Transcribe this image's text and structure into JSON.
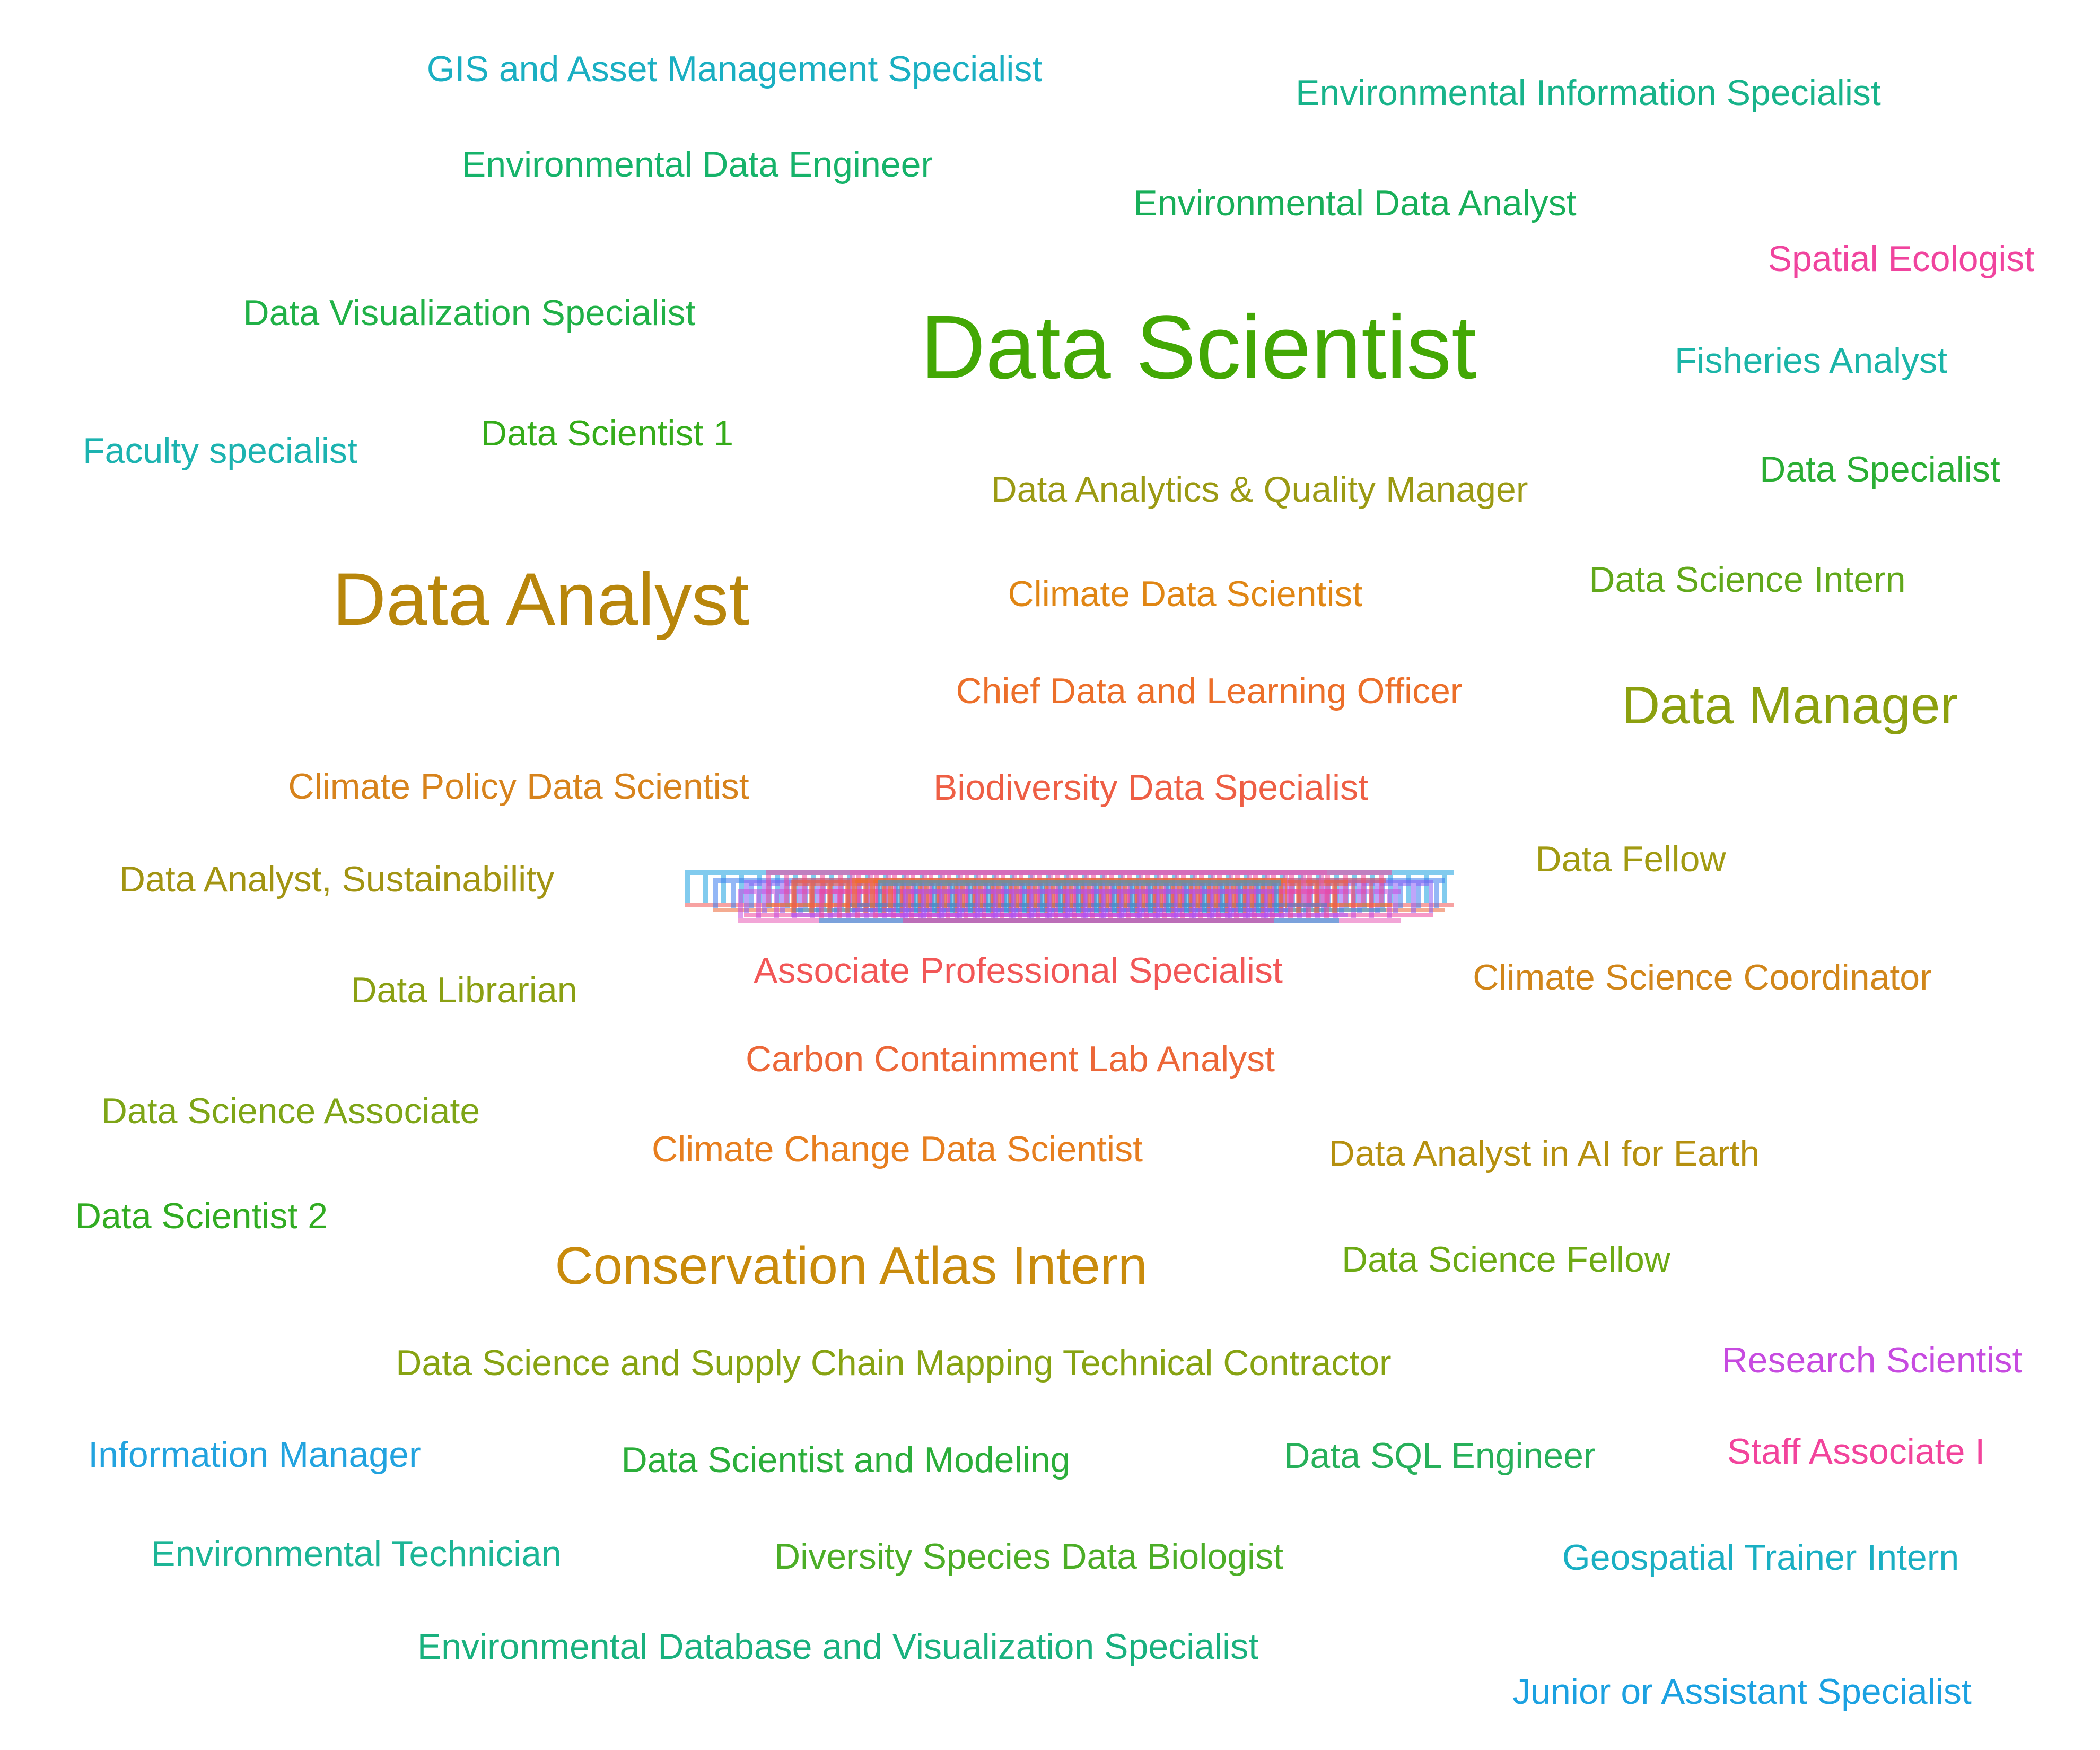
{
  "chart_data": {
    "type": "wordcloud",
    "words": [
      {
        "text": "Data Scientist",
        "weight": 5,
        "color": "#43A805"
      },
      {
        "text": "Data Analyst",
        "weight": 4,
        "color": "#B8860B"
      },
      {
        "text": "Data Manager",
        "weight": 3,
        "color": "#8CA00F"
      },
      {
        "text": "Conservation Atlas Intern",
        "weight": 3,
        "color": "#C98B0C"
      },
      {
        "text": "GIS and Asset Management Specialist",
        "weight": 1,
        "color": "#1AAFC2"
      },
      {
        "text": "Environmental Information Specialist",
        "weight": 1,
        "color": "#17B38A"
      },
      {
        "text": "Environmental Data Engineer",
        "weight": 1,
        "color": "#16B36A"
      },
      {
        "text": "Environmental Data Analyst",
        "weight": 1,
        "color": "#18AF59"
      },
      {
        "text": "Spatial Ecologist",
        "weight": 1,
        "color": "#F0449E"
      },
      {
        "text": "Data Visualization Specialist",
        "weight": 1,
        "color": "#20B147"
      },
      {
        "text": "Fisheries Analyst",
        "weight": 1,
        "color": "#1BB5A8"
      },
      {
        "text": "Faculty specialist",
        "weight": 1,
        "color": "#1CB3B0"
      },
      {
        "text": "Data Scientist 1",
        "weight": 1,
        "color": "#35AC1A"
      },
      {
        "text": "Data Specialist",
        "weight": 1,
        "color": "#2AAE34"
      },
      {
        "text": "Data Analytics & Quality Manager",
        "weight": 1,
        "color": "#9B9A13"
      },
      {
        "text": "Climate Data Scientist",
        "weight": 1,
        "color": "#E08614"
      },
      {
        "text": "Data Science Intern",
        "weight": 1,
        "color": "#61A81A"
      },
      {
        "text": "Chief Data and Learning Officer",
        "weight": 1,
        "color": "#EC6F2A"
      },
      {
        "text": "Climate Policy Data Scientist",
        "weight": 1,
        "color": "#D7831C"
      },
      {
        "text": "Biodiversity Data Specialist",
        "weight": 1,
        "color": "#EE5F45"
      },
      {
        "text": "Data Fellow",
        "weight": 1,
        "color": "#A19A11"
      },
      {
        "text": "Data Analyst, Sustainability",
        "weight": 1,
        "color": "#A29412"
      },
      {
        "text": "Associate Professional Specialist",
        "weight": 1,
        "color": "#F25757"
      },
      {
        "text": "Climate Science Coordinator",
        "weight": 1,
        "color": "#D1861A"
      },
      {
        "text": "Data Librarian",
        "weight": 1,
        "color": "#8BA013"
      },
      {
        "text": "Carbon Containment Lab Analyst",
        "weight": 1,
        "color": "#EC6738"
      },
      {
        "text": "Data Science Associate",
        "weight": 1,
        "color": "#7EA517"
      },
      {
        "text": "Climate Change Data Scientist",
        "weight": 1,
        "color": "#E77E1E"
      },
      {
        "text": "Data Analyst in AI for Earth",
        "weight": 1,
        "color": "#B5900F"
      },
      {
        "text": "Data Scientist 2",
        "weight": 1,
        "color": "#31AC22"
      },
      {
        "text": "Data Science Fellow",
        "weight": 1,
        "color": "#6DAA14"
      },
      {
        "text": "Data Science and Supply Chain Mapping Technical Contractor",
        "weight": 1,
        "color": "#87A312"
      },
      {
        "text": "Research Scientist",
        "weight": 1,
        "color": "#C74BE0"
      },
      {
        "text": "Information Manager",
        "weight": 1,
        "color": "#22A3DF"
      },
      {
        "text": "Data Scientist and Modeling",
        "weight": 1,
        "color": "#2BAE3A"
      },
      {
        "text": "Data SQL Engineer",
        "weight": 1,
        "color": "#27B05A"
      },
      {
        "text": "Staff Associate I",
        "weight": 1,
        "color": "#F2449C"
      },
      {
        "text": "Environmental Technician",
        "weight": 1,
        "color": "#1CB596"
      },
      {
        "text": "Diversity Species Data Biologist",
        "weight": 1,
        "color": "#4CAE27"
      },
      {
        "text": "Geospatial Trainer Intern",
        "weight": 1,
        "color": "#1AAFC3"
      },
      {
        "text": "Environmental Database and Visualization Specialist",
        "weight": 1,
        "color": "#19B17E"
      },
      {
        "text": "Junior or Assistant Specialist",
        "weight": 1,
        "color": "#1BA1E1"
      }
    ]
  }
}
